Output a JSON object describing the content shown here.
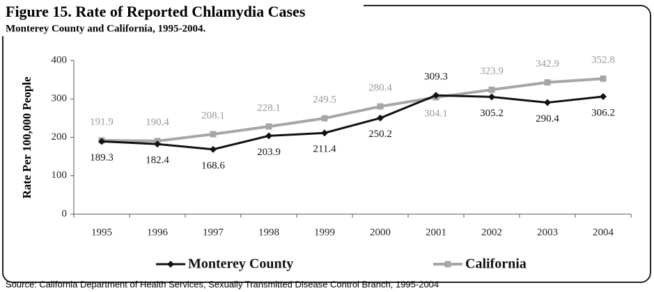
{
  "chart_data": {
    "type": "line",
    "title": "Figure 15.  Rate of Reported Chlamydia Cases",
    "subtitle": "Monterey County and California, 1995-2004.",
    "y_label": "Rate Per 100,000 People",
    "source": "Source: California Department of Health Services, Sexually Transmitted Disease Control Branch, 1995-2004",
    "categories": [
      "1995",
      "1996",
      "1997",
      "1998",
      "1999",
      "2000",
      "2001",
      "2002",
      "2003",
      "2004"
    ],
    "series": [
      {
        "name": "Monterey County",
        "color": "#111111",
        "values": [
          189.3,
          182.4,
          168.6,
          203.9,
          211.4,
          250.2,
          309.3,
          305.2,
          290.4,
          306.2
        ]
      },
      {
        "name": "California",
        "color": "#a6a6a6",
        "values": [
          191.9,
          190.4,
          208.1,
          228.1,
          249.5,
          280.4,
          304.1,
          323.9,
          342.9,
          352.8
        ]
      }
    ],
    "ylim": [
      0,
      400
    ],
    "yticks": [
      0,
      100,
      200,
      300,
      400
    ],
    "grid": false
  }
}
